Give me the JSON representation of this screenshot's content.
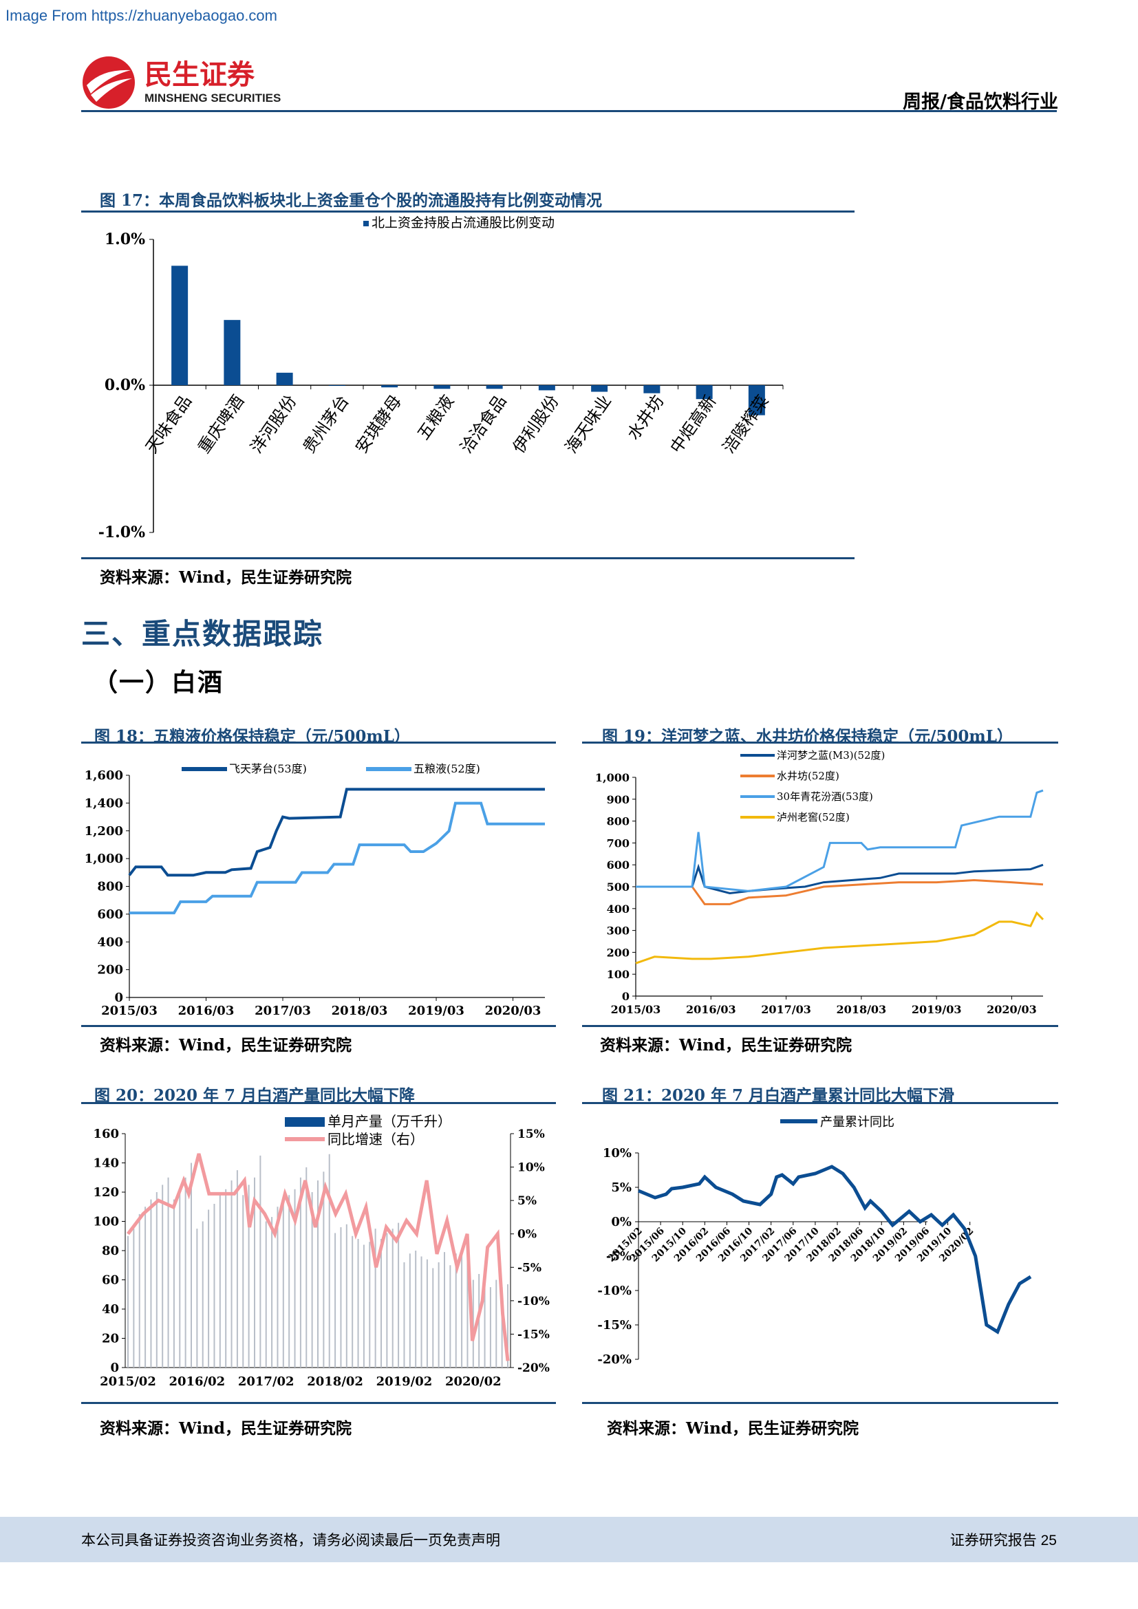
{
  "watermark": "Image From https://zhuanyebaogao.com",
  "header": {
    "logo_cn": "民生证券",
    "logo_en": "MINSHENG SECURITIES",
    "report_type": "周报/食品饮料行业"
  },
  "section": {
    "h1": "三、重点数据跟踪",
    "h2": "（一）白酒"
  },
  "fig17": {
    "title": "图 17：本周食品饮料板块北上资金重仓个股的流通股持有比例变动情况",
    "source": "资料来源：Wind，民生证券研究院",
    "chart_data": {
      "type": "bar",
      "series": [
        {
          "name": "北上资金持股占流通股比例变动",
          "color": "#0b4d92",
          "values": [
            0.82,
            0.45,
            0.09,
            0.0,
            -0.01,
            -0.02,
            -0.02,
            -0.03,
            -0.04,
            -0.05,
            -0.09,
            -0.2
          ]
        }
      ],
      "categories": [
        "天味食品",
        "重庆啤酒",
        "洋河股份",
        "贵州茅台",
        "安琪酵母",
        "五粮液",
        "洽洽食品",
        "伊利股份",
        "海天味业",
        "水井坊",
        "中炬高新",
        "涪陵榨菜"
      ],
      "ylim": [
        -1.0,
        1.0
      ],
      "yticks": [
        "1.0%",
        "0.0%",
        "-1.0%"
      ]
    }
  },
  "fig18": {
    "title": "图 18：五粮液价格保持稳定（元/500mL）",
    "source": "资料来源：Wind，民生证券研究院",
    "chart_data": {
      "type": "line",
      "ylim": [
        0,
        1600
      ],
      "yticks": [
        "0",
        "200",
        "400",
        "600",
        "800",
        "1,000",
        "1,200",
        "1,400",
        "1,600"
      ],
      "xticks": [
        "2015/03",
        "2016/03",
        "2017/03",
        "2018/03",
        "2019/03",
        "2020/03"
      ],
      "x_start": "2015-03",
      "series": [
        {
          "name": "飞天茅台(53度)",
          "color": "#0b4d92",
          "points": [
            [
              "2015-03",
              880
            ],
            [
              "2015-04",
              940
            ],
            [
              "2015-08",
              940
            ],
            [
              "2015-09",
              880
            ],
            [
              "2016-01",
              880
            ],
            [
              "2016-03",
              900
            ],
            [
              "2016-06",
              900
            ],
            [
              "2016-07",
              920
            ],
            [
              "2016-10",
              930
            ],
            [
              "2016-11",
              1050
            ],
            [
              "2017-01",
              1080
            ],
            [
              "2017-02",
              1200
            ],
            [
              "2017-03",
              1300
            ],
            [
              "2017-04",
              1290
            ],
            [
              "2017-12",
              1300
            ],
            [
              "2018-01",
              1499
            ],
            [
              "2020-08",
              1499
            ]
          ]
        },
        {
          "name": "五粮液(52度)",
          "color": "#4aa0e6",
          "points": [
            [
              "2015-03",
              609
            ],
            [
              "2015-10",
              609
            ],
            [
              "2015-11",
              689
            ],
            [
              "2016-03",
              689
            ],
            [
              "2016-04",
              729
            ],
            [
              "2016-10",
              729
            ],
            [
              "2016-11",
              829
            ],
            [
              "2017-05",
              829
            ],
            [
              "2017-06",
              899
            ],
            [
              "2017-10",
              899
            ],
            [
              "2017-11",
              959
            ],
            [
              "2018-02",
              959
            ],
            [
              "2018-03",
              1099
            ],
            [
              "2018-10",
              1099
            ],
            [
              "2018-11",
              1050
            ],
            [
              "2019-01",
              1050
            ],
            [
              "2019-03",
              1109
            ],
            [
              "2019-05",
              1199
            ],
            [
              "2019-06",
              1399
            ],
            [
              "2019-10",
              1399
            ],
            [
              "2019-11",
              1250
            ],
            [
              "2020-08",
              1250
            ]
          ]
        }
      ]
    }
  },
  "fig19": {
    "title": "图 19：洋河梦之蓝、水井坊价格保持稳定（元/500mL）",
    "source": "资料来源：Wind，民生证券研究院",
    "chart_data": {
      "type": "line",
      "ylim": [
        0,
        1000
      ],
      "yticks": [
        "0",
        "100",
        "200",
        "300",
        "400",
        "500",
        "600",
        "700",
        "800",
        "900",
        "1,000"
      ],
      "xticks": [
        "2015/03",
        "2016/03",
        "2017/03",
        "2018/03",
        "2019/03",
        "2020/03"
      ],
      "x_start": "2015-03",
      "series": [
        {
          "name": "洋河梦之蓝(M3)(52度)",
          "color": "#0b4d92",
          "points": [
            [
              "2015-03",
              500
            ],
            [
              "2015-12",
              500
            ],
            [
              "2016-01",
              590
            ],
            [
              "2016-02",
              500
            ],
            [
              "2016-06",
              470
            ],
            [
              "2016-09",
              480
            ],
            [
              "2017-01",
              490
            ],
            [
              "2017-06",
              500
            ],
            [
              "2017-09",
              520
            ],
            [
              "2018-06",
              540
            ],
            [
              "2018-09",
              560
            ],
            [
              "2019-06",
              560
            ],
            [
              "2019-09",
              570
            ],
            [
              "2020-06",
              580
            ],
            [
              "2020-08",
              600
            ]
          ]
        },
        {
          "name": "水井坊(52度)",
          "color": "#ed7d31",
          "points": [
            [
              "2015-03",
              500
            ],
            [
              "2015-12",
              500
            ],
            [
              "2016-02",
              420
            ],
            [
              "2016-06",
              420
            ],
            [
              "2016-09",
              450
            ],
            [
              "2017-03",
              460
            ],
            [
              "2017-06",
              480
            ],
            [
              "2017-09",
              500
            ],
            [
              "2018-03",
              510
            ],
            [
              "2018-09",
              520
            ],
            [
              "2019-03",
              520
            ],
            [
              "2019-09",
              530
            ],
            [
              "2020-03",
              520
            ],
            [
              "2020-08",
              510
            ]
          ]
        },
        {
          "name": "30年青花汾酒(53度)",
          "color": "#4aa0e6",
          "points": [
            [
              "2015-03",
              500
            ],
            [
              "2015-12",
              500
            ],
            [
              "2016-01",
              750
            ],
            [
              "2016-02",
              500
            ],
            [
              "2016-09",
              480
            ],
            [
              "2017-03",
              500
            ],
            [
              "2017-09",
              590
            ],
            [
              "2017-10",
              700
            ],
            [
              "2018-03",
              700
            ],
            [
              "2018-04",
              670
            ],
            [
              "2018-06",
              680
            ],
            [
              "2019-03",
              680
            ],
            [
              "2019-06",
              680
            ],
            [
              "2019-07",
              780
            ],
            [
              "2020-01",
              820
            ],
            [
              "2020-06",
              820
            ],
            [
              "2020-07",
              930
            ],
            [
              "2020-08",
              940
            ]
          ]
        },
        {
          "name": "泸州老窖(52度)",
          "color": "#f2b90c",
          "points": [
            [
              "2015-03",
              150
            ],
            [
              "2015-06",
              180
            ],
            [
              "2015-12",
              170
            ],
            [
              "2016-03",
              170
            ],
            [
              "2016-09",
              180
            ],
            [
              "2017-03",
              200
            ],
            [
              "2017-09",
              220
            ],
            [
              "2018-03",
              230
            ],
            [
              "2018-09",
              240
            ],
            [
              "2019-03",
              250
            ],
            [
              "2019-09",
              280
            ],
            [
              "2020-01",
              340
            ],
            [
              "2020-03",
              340
            ],
            [
              "2020-06",
              320
            ],
            [
              "2020-07",
              380
            ],
            [
              "2020-08",
              350
            ]
          ]
        }
      ]
    }
  },
  "fig20": {
    "title": "图 20：2020 年 7 月白酒产量同比大幅下降",
    "source": "资料来源：Wind，民生证券研究院",
    "chart_data": {
      "type": "bar",
      "ylim": [
        0,
        160
      ],
      "y2lim": [
        -20,
        15
      ],
      "yticks": [
        "0",
        "20",
        "40",
        "60",
        "80",
        "100",
        "120",
        "140",
        "160"
      ],
      "y2ticks": [
        "15%",
        "10%",
        "5%",
        "0%",
        "-5%",
        "-10%",
        "-15%",
        "-20%"
      ],
      "xticks": [
        "2015/02",
        "2016/02",
        "2017/02",
        "2018/02",
        "2019/02",
        "2020/02"
      ],
      "x_start": "2015-02",
      "series": [
        {
          "name": "单月产量（万千升）",
          "color": "#0b4d92",
          "values": [
            90,
            95,
            105,
            110,
            115,
            120,
            125,
            130,
            115,
            120,
            130,
            140,
            95,
            100,
            108,
            112,
            120,
            122,
            128,
            135,
            118,
            125,
            130,
            145,
            100,
            103,
            110,
            115,
            118,
            122,
            130,
            137,
            120,
            128,
            134,
            146,
            92,
            96,
            98,
            90,
            88,
            84,
            86,
            95,
            88,
            92,
            95,
            99,
            72,
            78,
            80,
            76,
            74,
            68,
            72,
            79,
            70,
            78,
            80,
            84,
            60,
            64,
            62,
            55,
            60,
            55,
            57
          ]
        },
        {
          "name": "同比增速（右）",
          "color": "#f29a9e",
          "points": [
            [
              "2015-02",
              0
            ],
            [
              "2015-05",
              3
            ],
            [
              "2015-08",
              5
            ],
            [
              "2015-11",
              4
            ],
            [
              "2016-01",
              8
            ],
            [
              "2016-02",
              6
            ],
            [
              "2016-04",
              12
            ],
            [
              "2016-06",
              6
            ],
            [
              "2016-09",
              6
            ],
            [
              "2016-11",
              6
            ],
            [
              "2017-01",
              8
            ],
            [
              "2017-02",
              1
            ],
            [
              "2017-03",
              5
            ],
            [
              "2017-05",
              3
            ],
            [
              "2017-07",
              0
            ],
            [
              "2017-09",
              6
            ],
            [
              "2017-11",
              2
            ],
            [
              "2018-01",
              8
            ],
            [
              "2018-03",
              1
            ],
            [
              "2018-05",
              7
            ],
            [
              "2018-07",
              3
            ],
            [
              "2018-09",
              6
            ],
            [
              "2018-11",
              0
            ],
            [
              "2019-01",
              4
            ],
            [
              "2019-03",
              -5
            ],
            [
              "2019-05",
              1
            ],
            [
              "2019-07",
              -1
            ],
            [
              "2019-09",
              2
            ],
            [
              "2019-11",
              0
            ],
            [
              "2020-01",
              8
            ],
            [
              "2020-03",
              -3
            ],
            [
              "2020-05",
              2
            ],
            [
              "2020-07",
              -5
            ],
            [
              "2020-09",
              0
            ],
            [
              "2020-10",
              -16
            ],
            [
              "2020-12",
              -10
            ],
            [
              "2021-01",
              -2
            ],
            [
              "2021-03",
              0
            ],
            [
              "2021-04",
              -12
            ],
            [
              "2021-05",
              -19
            ]
          ]
        }
      ]
    }
  },
  "fig21": {
    "title": "图 21：2020 年 7 月白酒产量累计同比大幅下滑",
    "source": "资料来源：Wind，民生证券研究院",
    "chart_data": {
      "type": "line",
      "ylim": [
        -20,
        10
      ],
      "yticks": [
        "10%",
        "5%",
        "0%",
        "-5%",
        "-10%",
        "-15%",
        "-20%"
      ],
      "xticks": [
        "2015/02",
        "2015/06",
        "2015/10",
        "2016/02",
        "2016/06",
        "2016/10",
        "2017/02",
        "2017/06",
        "2017/10",
        "2018/02",
        "2018/06",
        "2018/10",
        "2019/02",
        "2019/06",
        "2019/10",
        "2020/02"
      ],
      "x_start": "2015-02",
      "series": [
        {
          "name": "产量累计同比",
          "color": "#0b4d92",
          "points": [
            [
              "2015-02",
              4.5
            ],
            [
              "2015-05",
              3.5
            ],
            [
              "2015-07",
              4.0
            ],
            [
              "2015-08",
              4.8
            ],
            [
              "2015-10",
              5.0
            ],
            [
              "2016-01",
              5.5
            ],
            [
              "2016-02",
              6.5
            ],
            [
              "2016-04",
              5.0
            ],
            [
              "2016-07",
              4.0
            ],
            [
              "2016-09",
              3.0
            ],
            [
              "2016-12",
              2.5
            ],
            [
              "2017-02",
              4.0
            ],
            [
              "2017-03",
              6.5
            ],
            [
              "2017-04",
              6.8
            ],
            [
              "2017-06",
              5.5
            ],
            [
              "2017-07",
              6.5
            ],
            [
              "2017-10",
              7.0
            ],
            [
              "2018-01",
              8.0
            ],
            [
              "2018-03",
              7.0
            ],
            [
              "2018-05",
              5.0
            ],
            [
              "2018-07",
              2.0
            ],
            [
              "2018-08",
              3.0
            ],
            [
              "2018-10",
              1.5
            ],
            [
              "2018-12",
              -0.5
            ],
            [
              "2019-03",
              1.5
            ],
            [
              "2019-05",
              0.0
            ],
            [
              "2019-07",
              1.0
            ],
            [
              "2019-09",
              -0.5
            ],
            [
              "2019-11",
              1.0
            ],
            [
              "2020-01",
              -1.0
            ],
            [
              "2020-03",
              -5.0
            ],
            [
              "2020-05",
              -15.0
            ],
            [
              "2020-07",
              -16.0
            ],
            [
              "2020-09",
              -12.0
            ],
            [
              "2020-11",
              -9.0
            ],
            [
              "2021-01",
              -8.0
            ]
          ]
        }
      ]
    }
  },
  "footer": {
    "left": "本公司具备证券投资咨询业务资格，请务必阅读最后一页免责声明",
    "right": "证券研究报告   25"
  }
}
